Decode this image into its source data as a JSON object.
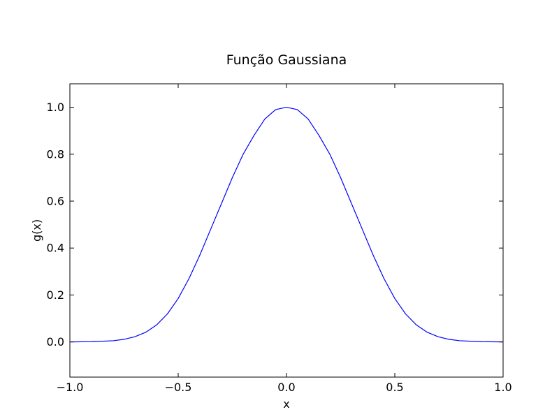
{
  "chart_data": {
    "type": "line",
    "title": "Função Gaussiana",
    "xlabel": "x",
    "ylabel": "g(x)",
    "xlim": [
      -1.0,
      1.0
    ],
    "ylim": [
      -0.15,
      1.1
    ],
    "grid": false,
    "x_ticks": [
      -1.0,
      -0.5,
      0.0,
      0.5,
      1.0
    ],
    "x_tick_labels": [
      "−1.0",
      "−0.5",
      "0.0",
      "0.5",
      "1.0"
    ],
    "y_ticks": [
      0.0,
      0.2,
      0.4,
      0.6,
      0.8,
      1.0
    ],
    "y_tick_labels": [
      "0.0",
      "0.2",
      "0.4",
      "0.6",
      "0.8",
      "1.0"
    ],
    "series": [
      {
        "color": "#0000ff",
        "x": [
          -1.0,
          -0.9,
          -0.8,
          -0.75,
          -0.7,
          -0.65,
          -0.6,
          -0.55,
          -0.5,
          -0.45,
          -0.4,
          -0.35,
          -0.3,
          -0.25,
          -0.2,
          -0.15,
          -0.1,
          -0.05,
          0.0,
          0.05,
          0.1,
          0.15,
          0.2,
          0.25,
          0.3,
          0.35,
          0.4,
          0.45,
          0.5,
          0.55,
          0.6,
          0.65,
          0.7,
          0.75,
          0.8,
          0.9,
          1.0
        ],
        "y": [
          0.0,
          0.001,
          0.005,
          0.011,
          0.022,
          0.041,
          0.072,
          0.119,
          0.185,
          0.27,
          0.37,
          0.48,
          0.59,
          0.7,
          0.8,
          0.88,
          0.95,
          0.99,
          1.0,
          0.99,
          0.95,
          0.88,
          0.8,
          0.7,
          0.59,
          0.48,
          0.37,
          0.27,
          0.185,
          0.119,
          0.072,
          0.041,
          0.022,
          0.011,
          0.005,
          0.001,
          0.0
        ]
      }
    ]
  }
}
